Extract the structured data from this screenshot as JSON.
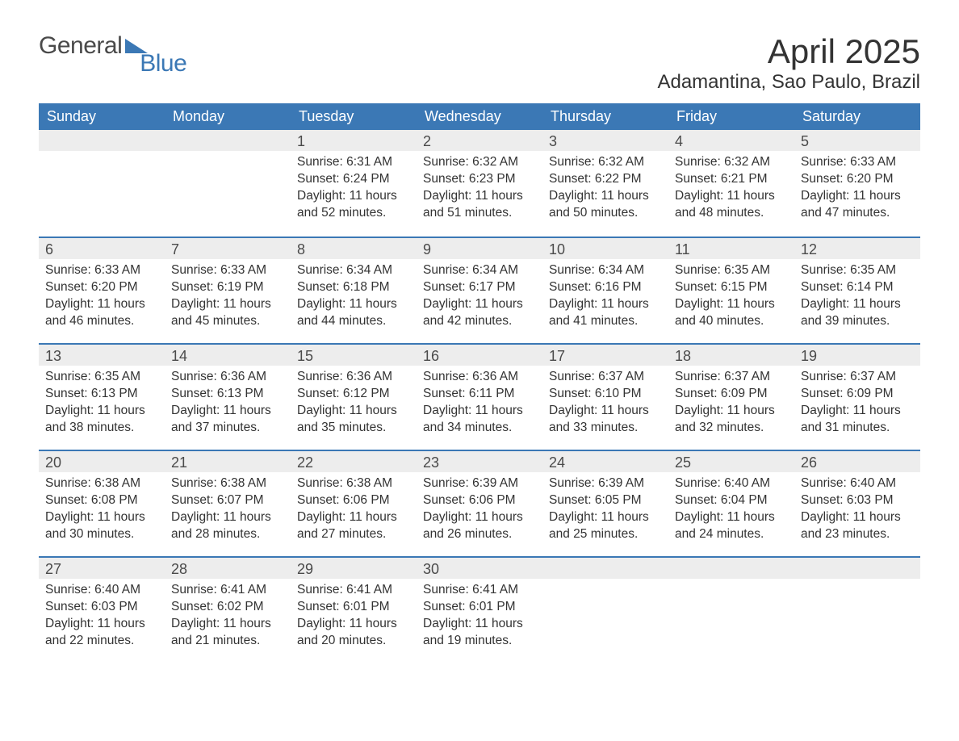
{
  "logo": {
    "text1": "General",
    "text2": "Blue"
  },
  "title": "April 2025",
  "location": "Adamantina, Sao Paulo, Brazil",
  "colors": {
    "header_bg": "#3b78b5",
    "header_text": "#ffffff",
    "date_strip_bg": "#ededed",
    "week_border": "#3b78b5",
    "text": "#333333",
    "page_bg": "#ffffff"
  },
  "dow": [
    "Sunday",
    "Monday",
    "Tuesday",
    "Wednesday",
    "Thursday",
    "Friday",
    "Saturday"
  ],
  "weeks": [
    [
      null,
      null,
      {
        "date": "1",
        "sunrise": "Sunrise: 6:31 AM",
        "sunset": "Sunset: 6:24 PM",
        "daylight": "Daylight: 11 hours and 52 minutes."
      },
      {
        "date": "2",
        "sunrise": "Sunrise: 6:32 AM",
        "sunset": "Sunset: 6:23 PM",
        "daylight": "Daylight: 11 hours and 51 minutes."
      },
      {
        "date": "3",
        "sunrise": "Sunrise: 6:32 AM",
        "sunset": "Sunset: 6:22 PM",
        "daylight": "Daylight: 11 hours and 50 minutes."
      },
      {
        "date": "4",
        "sunrise": "Sunrise: 6:32 AM",
        "sunset": "Sunset: 6:21 PM",
        "daylight": "Daylight: 11 hours and 48 minutes."
      },
      {
        "date": "5",
        "sunrise": "Sunrise: 6:33 AM",
        "sunset": "Sunset: 6:20 PM",
        "daylight": "Daylight: 11 hours and 47 minutes."
      }
    ],
    [
      {
        "date": "6",
        "sunrise": "Sunrise: 6:33 AM",
        "sunset": "Sunset: 6:20 PM",
        "daylight": "Daylight: 11 hours and 46 minutes."
      },
      {
        "date": "7",
        "sunrise": "Sunrise: 6:33 AM",
        "sunset": "Sunset: 6:19 PM",
        "daylight": "Daylight: 11 hours and 45 minutes."
      },
      {
        "date": "8",
        "sunrise": "Sunrise: 6:34 AM",
        "sunset": "Sunset: 6:18 PM",
        "daylight": "Daylight: 11 hours and 44 minutes."
      },
      {
        "date": "9",
        "sunrise": "Sunrise: 6:34 AM",
        "sunset": "Sunset: 6:17 PM",
        "daylight": "Daylight: 11 hours and 42 minutes."
      },
      {
        "date": "10",
        "sunrise": "Sunrise: 6:34 AM",
        "sunset": "Sunset: 6:16 PM",
        "daylight": "Daylight: 11 hours and 41 minutes."
      },
      {
        "date": "11",
        "sunrise": "Sunrise: 6:35 AM",
        "sunset": "Sunset: 6:15 PM",
        "daylight": "Daylight: 11 hours and 40 minutes."
      },
      {
        "date": "12",
        "sunrise": "Sunrise: 6:35 AM",
        "sunset": "Sunset: 6:14 PM",
        "daylight": "Daylight: 11 hours and 39 minutes."
      }
    ],
    [
      {
        "date": "13",
        "sunrise": "Sunrise: 6:35 AM",
        "sunset": "Sunset: 6:13 PM",
        "daylight": "Daylight: 11 hours and 38 minutes."
      },
      {
        "date": "14",
        "sunrise": "Sunrise: 6:36 AM",
        "sunset": "Sunset: 6:13 PM",
        "daylight": "Daylight: 11 hours and 37 minutes."
      },
      {
        "date": "15",
        "sunrise": "Sunrise: 6:36 AM",
        "sunset": "Sunset: 6:12 PM",
        "daylight": "Daylight: 11 hours and 35 minutes."
      },
      {
        "date": "16",
        "sunrise": "Sunrise: 6:36 AM",
        "sunset": "Sunset: 6:11 PM",
        "daylight": "Daylight: 11 hours and 34 minutes."
      },
      {
        "date": "17",
        "sunrise": "Sunrise: 6:37 AM",
        "sunset": "Sunset: 6:10 PM",
        "daylight": "Daylight: 11 hours and 33 minutes."
      },
      {
        "date": "18",
        "sunrise": "Sunrise: 6:37 AM",
        "sunset": "Sunset: 6:09 PM",
        "daylight": "Daylight: 11 hours and 32 minutes."
      },
      {
        "date": "19",
        "sunrise": "Sunrise: 6:37 AM",
        "sunset": "Sunset: 6:09 PM",
        "daylight": "Daylight: 11 hours and 31 minutes."
      }
    ],
    [
      {
        "date": "20",
        "sunrise": "Sunrise: 6:38 AM",
        "sunset": "Sunset: 6:08 PM",
        "daylight": "Daylight: 11 hours and 30 minutes."
      },
      {
        "date": "21",
        "sunrise": "Sunrise: 6:38 AM",
        "sunset": "Sunset: 6:07 PM",
        "daylight": "Daylight: 11 hours and 28 minutes."
      },
      {
        "date": "22",
        "sunrise": "Sunrise: 6:38 AM",
        "sunset": "Sunset: 6:06 PM",
        "daylight": "Daylight: 11 hours and 27 minutes."
      },
      {
        "date": "23",
        "sunrise": "Sunrise: 6:39 AM",
        "sunset": "Sunset: 6:06 PM",
        "daylight": "Daylight: 11 hours and 26 minutes."
      },
      {
        "date": "24",
        "sunrise": "Sunrise: 6:39 AM",
        "sunset": "Sunset: 6:05 PM",
        "daylight": "Daylight: 11 hours and 25 minutes."
      },
      {
        "date": "25",
        "sunrise": "Sunrise: 6:40 AM",
        "sunset": "Sunset: 6:04 PM",
        "daylight": "Daylight: 11 hours and 24 minutes."
      },
      {
        "date": "26",
        "sunrise": "Sunrise: 6:40 AM",
        "sunset": "Sunset: 6:03 PM",
        "daylight": "Daylight: 11 hours and 23 minutes."
      }
    ],
    [
      {
        "date": "27",
        "sunrise": "Sunrise: 6:40 AM",
        "sunset": "Sunset: 6:03 PM",
        "daylight": "Daylight: 11 hours and 22 minutes."
      },
      {
        "date": "28",
        "sunrise": "Sunrise: 6:41 AM",
        "sunset": "Sunset: 6:02 PM",
        "daylight": "Daylight: 11 hours and 21 minutes."
      },
      {
        "date": "29",
        "sunrise": "Sunrise: 6:41 AM",
        "sunset": "Sunset: 6:01 PM",
        "daylight": "Daylight: 11 hours and 20 minutes."
      },
      {
        "date": "30",
        "sunrise": "Sunrise: 6:41 AM",
        "sunset": "Sunset: 6:01 PM",
        "daylight": "Daylight: 11 hours and 19 minutes."
      },
      null,
      null,
      null
    ]
  ]
}
